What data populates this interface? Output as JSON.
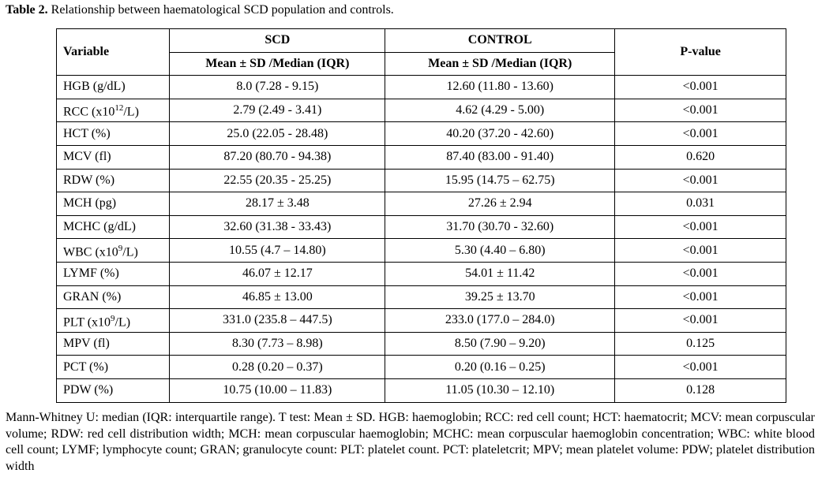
{
  "caption": {
    "label": "Table 2.",
    "text": " Relationship between haematological SCD population and controls."
  },
  "headers": {
    "variable": "Variable",
    "scd": "SCD",
    "control": "CONTROL",
    "pvalue": "P-value",
    "scd_sub": "Mean ± SD /Median (IQR)",
    "control_sub": "Mean ± SD /Median (IQR)"
  },
  "rows": [
    {
      "pre": "HGB (g/dL)",
      "sup": "",
      "post": "",
      "scd": "8.0 (7.28 - 9.15)",
      "control": "12.60 (11.80 - 13.60)",
      "p": "<0.001"
    },
    {
      "pre": "RCC (x10",
      "sup": "12",
      "post": "/L)",
      "scd": "2.79 (2.49 - 3.41)",
      "control": "4.62 (4.29 - 5.00)",
      "p": "<0.001"
    },
    {
      "pre": "HCT (%)",
      "sup": "",
      "post": "",
      "scd": "25.0 (22.05 - 28.48)",
      "control": "40.20 (37.20 - 42.60)",
      "p": "<0.001"
    },
    {
      "pre": "MCV (fl)",
      "sup": "",
      "post": "",
      "scd": "87.20 (80.70 - 94.38)",
      "control": "87.40 (83.00 - 91.40)",
      "p": "0.620"
    },
    {
      "pre": "RDW (%)",
      "sup": "",
      "post": "",
      "scd": "22.55 (20.35 - 25.25)",
      "control": "15.95 (14.75 – 62.75)",
      "p": "<0.001"
    },
    {
      "pre": "MCH (pg)",
      "sup": "",
      "post": "",
      "scd": "28.17 ± 3.48",
      "control": "27.26 ± 2.94",
      "p": "0.031"
    },
    {
      "pre": "MCHC (g/dL)",
      "sup": "",
      "post": "",
      "scd": "32.60 (31.38 - 33.43)",
      "control": "31.70 (30.70 - 32.60)",
      "p": "<0.001"
    },
    {
      "pre": "WBC (x10",
      "sup": "9",
      "post": "/L)",
      "scd": "10.55 (4.7 – 14.80)",
      "control": "5.30 (4.40 – 6.80)",
      "p": "<0.001"
    },
    {
      "pre": "LYMF (%)",
      "sup": "",
      "post": "",
      "scd": "46.07 ± 12.17",
      "control": "54.01 ± 11.42",
      "p": "<0.001"
    },
    {
      "pre": "GRAN (%)",
      "sup": "",
      "post": "",
      "scd": "46.85 ± 13.00",
      "control": "39.25 ± 13.70",
      "p": "<0.001"
    },
    {
      "pre": "PLT (x10",
      "sup": "9",
      "post": "/L)",
      "scd": "331.0 (235.8 – 447.5)",
      "control": "233.0 (177.0 – 284.0)",
      "p": "<0.001"
    },
    {
      "pre": "MPV (fl)",
      "sup": "",
      "post": "",
      "scd": "8.30 (7.73 – 8.98)",
      "control": "8.50 (7.90 – 9.20)",
      "p": "0.125"
    },
    {
      "pre": "PCT (%)",
      "sup": "",
      "post": "",
      "scd": "0.28 (0.20 – 0.37)",
      "control": "0.20 (0.16 – 0.25)",
      "p": "<0.001"
    },
    {
      "pre": "PDW (%)",
      "sup": "",
      "post": "",
      "scd": "10.75 (10.00 – 11.83)",
      "control": "11.05 (10.30 – 12.10)",
      "p": "0.128"
    }
  ],
  "footnote": "Mann-Whitney U: median (IQR: interquartile range). T test: Mean ± SD. HGB: haemoglobin; RCC: red cell count; HCT: haematocrit; MCV: mean corpuscular volume; RDW: red cell distribution width; MCH: mean corpuscular haemoglobin; MCHC: mean corpuscular haemoglobin concentration; WBC: white blood cell count; LYMF; lymphocyte count; GRAN; granulocyte count: PLT: platelet count. PCT: plateletcrit; MPV; mean platelet volume: PDW; platelet distribution width"
}
